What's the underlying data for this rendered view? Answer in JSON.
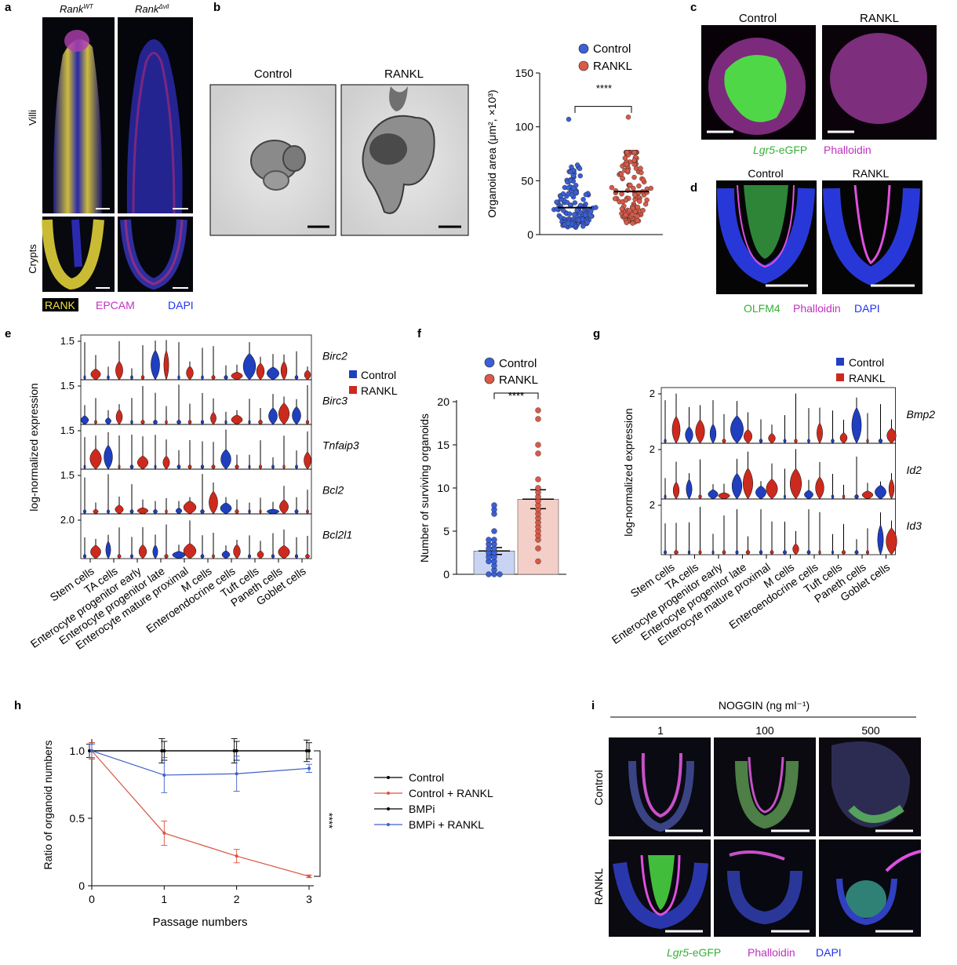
{
  "panels": {
    "a": {
      "letter": "a",
      "col_wt_pre": "Rank",
      "col_wt_sup": "WT",
      "col_ko_pre": "Rank",
      "col_ko_sup": "Δvil",
      "row_villi": "Villi",
      "row_crypts": "Crypts",
      "legend_rank": "RANK",
      "legend_epcam": "EPCAM",
      "legend_dapi": "DAPI"
    },
    "b": {
      "letter": "b",
      "img_control": "Control",
      "img_rankl": "RANKL",
      "legend_control": "Control",
      "legend_rankl": "RANKL",
      "signif": "****",
      "ylabel": "Organoid area (μm², ×10³)"
    },
    "c": {
      "letter": "c",
      "col_control": "Control",
      "col_rankl": "RANKL",
      "leg_lgr5_italic": "Lgr5",
      "leg_lgr5_rest": "-eGFP",
      "leg_phalloidin": "Phalloidin"
    },
    "d": {
      "letter": "d",
      "col_control": "Control",
      "col_rankl": "RANKL",
      "leg_olfm4": "OLFM4",
      "leg_phalloidin": "Phalloidin",
      "leg_dapi": "DAPI"
    },
    "e": {
      "letter": "e",
      "ylabel": "log-normalized expression",
      "legend_control": "Control",
      "legend_rankl": "RANKL"
    },
    "f": {
      "letter": "f",
      "ylabel": "Number of surviving organoids",
      "legend_control": "Control",
      "legend_rankl": "RANKL",
      "signif": "****"
    },
    "g": {
      "letter": "g",
      "ylabel": "log-normalized expression",
      "legend_control": "Control",
      "legend_rankl": "RANKL"
    },
    "h": {
      "letter": "h",
      "signif": "****",
      "xlabel": "Passage numbers",
      "ylabel": "Ratio of organoid numbers"
    },
    "i": {
      "letter": "i",
      "header": "NOGGIN (ng ml⁻¹)",
      "conc": [
        "1",
        "100",
        "500"
      ],
      "row_control": "Control",
      "row_rankl": "RANKL",
      "leg_lgr5_italic": "Lgr5",
      "leg_lgr5_rest": "-eGFP",
      "leg_phalloidin": "Phalloidin",
      "leg_dapi": "DAPI"
    }
  },
  "colors": {
    "control_blue": "#1f3fbf",
    "rankl_red": "#cc2a1e",
    "gfp_green": "#3fdc3f",
    "phalloidin_magenta": "#d23cd2",
    "dapi_blue": "#2233ee",
    "rank_yellow": "#f0e040"
  },
  "chart_data": [
    {
      "id": "b",
      "type": "scatter",
      "categories": [
        "Control",
        "RANKL"
      ],
      "ylabel": "Organoid area (μm², ×10³)",
      "ylim": [
        0,
        150
      ],
      "yticks": [
        0,
        50,
        100,
        150
      ],
      "means": [
        25,
        40
      ],
      "max_points": [
        107,
        109
      ],
      "significance": "****"
    },
    {
      "id": "e",
      "type": "violin",
      "categories": [
        "Stem cells",
        "TA cells",
        "Enterocyte progenitor early",
        "Enterocyte progenitor late",
        "Enterocyte mature proximal",
        "M cells",
        "Enteroendocrine cells",
        "Tuft cells",
        "Paneth cells",
        "Goblet cells"
      ],
      "series": [
        {
          "name": "Control"
        },
        {
          "name": "RANKL"
        }
      ],
      "genes": [
        {
          "name": "Birc2",
          "tick": "1.5"
        },
        {
          "name": "Birc3",
          "tick": "1.5"
        },
        {
          "name": "Tnfaip3",
          "tick": "1.5"
        },
        {
          "name": "Bcl2",
          "tick": "1.5"
        },
        {
          "name": "Bcl2l1",
          "tick": "2.0"
        }
      ],
      "ylabel": "log-normalized expression"
    },
    {
      "id": "f",
      "type": "bar",
      "categories": [
        "Control",
        "RANKL"
      ],
      "values": [
        2.7,
        8.7
      ],
      "errors": [
        0.4,
        1.1
      ],
      "points": [
        [
          0,
          0,
          0,
          0.5,
          1,
          1.5,
          1.5,
          2,
          2,
          2.5,
          2.5,
          3,
          3,
          3.5,
          3.5,
          4,
          4,
          5,
          7,
          7.5,
          8
        ],
        [
          1.5,
          3,
          4,
          4.5,
          5,
          5.5,
          6,
          6.5,
          7,
          7.5,
          8,
          8.5,
          9,
          9.5,
          10,
          11,
          14,
          15,
          18,
          19
        ]
      ],
      "ylabel": "Number of surviving organoids",
      "ylim": [
        0,
        20
      ],
      "yticks": [
        0,
        5,
        10,
        15,
        20
      ],
      "significance": "****"
    },
    {
      "id": "g",
      "type": "violin",
      "categories": [
        "Stem cells",
        "TA cells",
        "Enterocyte progenitor early",
        "Enterocyte progenitor late",
        "Enterocyte mature proximal",
        "M cells",
        "Enteroendocrine cells",
        "Tuft cells",
        "Paneth cells",
        "Goblet cells"
      ],
      "series": [
        {
          "name": "Control"
        },
        {
          "name": "RANKL"
        }
      ],
      "genes": [
        {
          "name": "Bmp2",
          "tick": "2"
        },
        {
          "name": "Id2",
          "tick": "2"
        },
        {
          "name": "Id3",
          "tick": "2"
        }
      ],
      "ylabel": "log-normalized expression"
    },
    {
      "id": "h",
      "type": "line",
      "x": [
        0,
        1,
        2,
        3
      ],
      "xlabel": "Passage numbers",
      "ylabel": "Ratio of organoid numbers",
      "ylim": [
        0,
        1.1
      ],
      "yticks": [
        "0",
        "0.5",
        "1.0"
      ],
      "series": [
        {
          "name": "Control",
          "values": [
            1.0,
            1.0,
            1.0,
            1.0
          ],
          "err": [
            0.06,
            0.07,
            0.07,
            0.06
          ],
          "color": "#000000"
        },
        {
          "name": "Control + RANKL",
          "values": [
            1.0,
            0.39,
            0.22,
            0.07
          ],
          "err": [
            0.06,
            0.09,
            0.05,
            0.01
          ],
          "color": "#d9543f"
        },
        {
          "name": "BMPi",
          "values": [
            1.0,
            1.0,
            1.0,
            1.0
          ],
          "err": [
            0.05,
            0.09,
            0.09,
            0.08
          ],
          "color": "#000000"
        },
        {
          "name": "BMPi + RANKL",
          "values": [
            1.0,
            0.82,
            0.83,
            0.87
          ],
          "err": [
            0.05,
            0.13,
            0.13,
            0.03
          ],
          "color": "#4060c8"
        }
      ],
      "significance": "****"
    }
  ]
}
